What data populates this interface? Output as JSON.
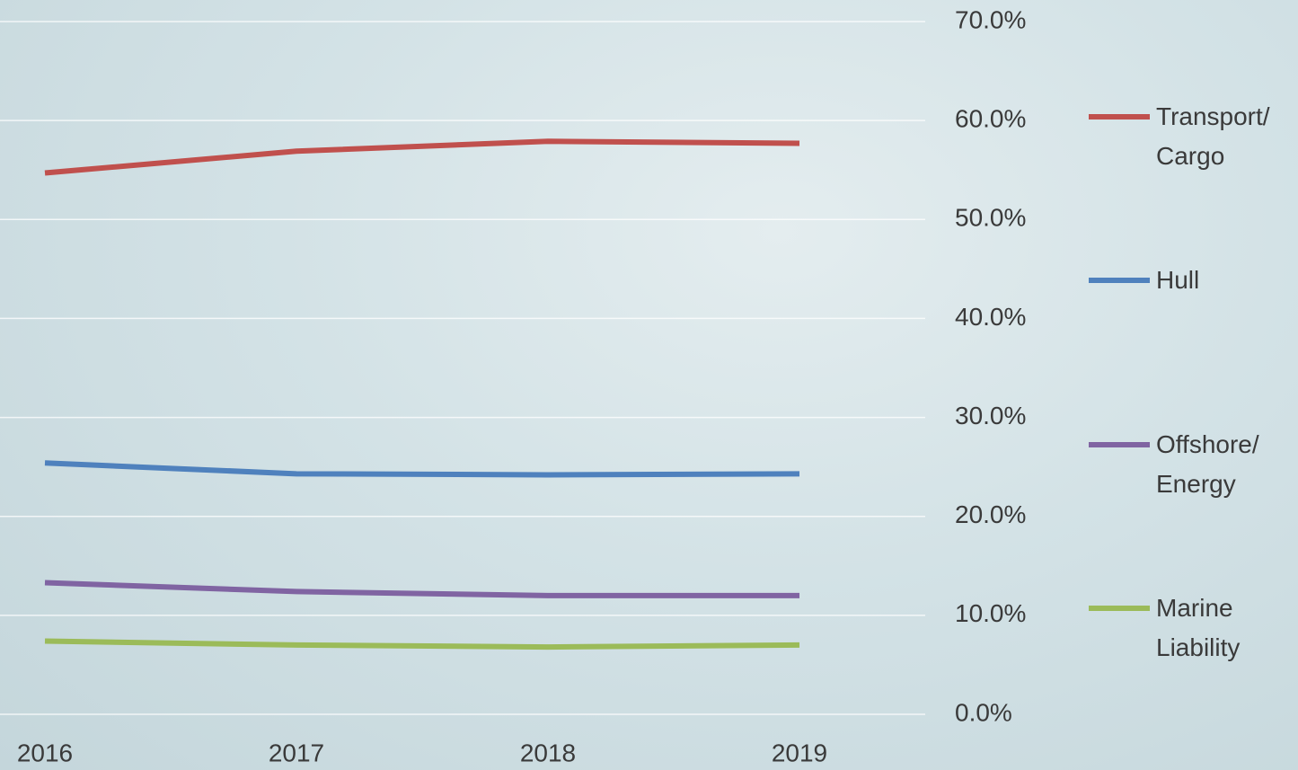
{
  "chart_data": {
    "type": "line",
    "categories": [
      "2016",
      "2017",
      "2018",
      "2019"
    ],
    "series": [
      {
        "name": "Transport/ Cargo",
        "color": "#c0504d",
        "values": [
          54.7,
          56.9,
          57.9,
          57.7
        ]
      },
      {
        "name": "Hull",
        "color": "#4f81bd",
        "values": [
          25.4,
          24.3,
          24.2,
          24.3
        ]
      },
      {
        "name": "Offshore/ Energy",
        "color": "#8064a2",
        "values": [
          13.3,
          12.4,
          12.0,
          12.0
        ]
      },
      {
        "name": "Marine Liability",
        "color": "#9bbb59",
        "values": [
          7.4,
          7.0,
          6.8,
          7.0
        ]
      }
    ],
    "ylim": [
      0,
      70
    ],
    "yticks": [
      {
        "value": 0,
        "label": "0.0%"
      },
      {
        "value": 10,
        "label": "10.0%"
      },
      {
        "value": 20,
        "label": "20.0%"
      },
      {
        "value": 30,
        "label": "30.0%"
      },
      {
        "value": 40,
        "label": "40.0%"
      },
      {
        "value": 50,
        "label": "50.0%"
      },
      {
        "value": 60,
        "label": "60.0%"
      },
      {
        "value": 70,
        "label": "70.0%"
      }
    ],
    "grid": true,
    "legend": "right"
  }
}
